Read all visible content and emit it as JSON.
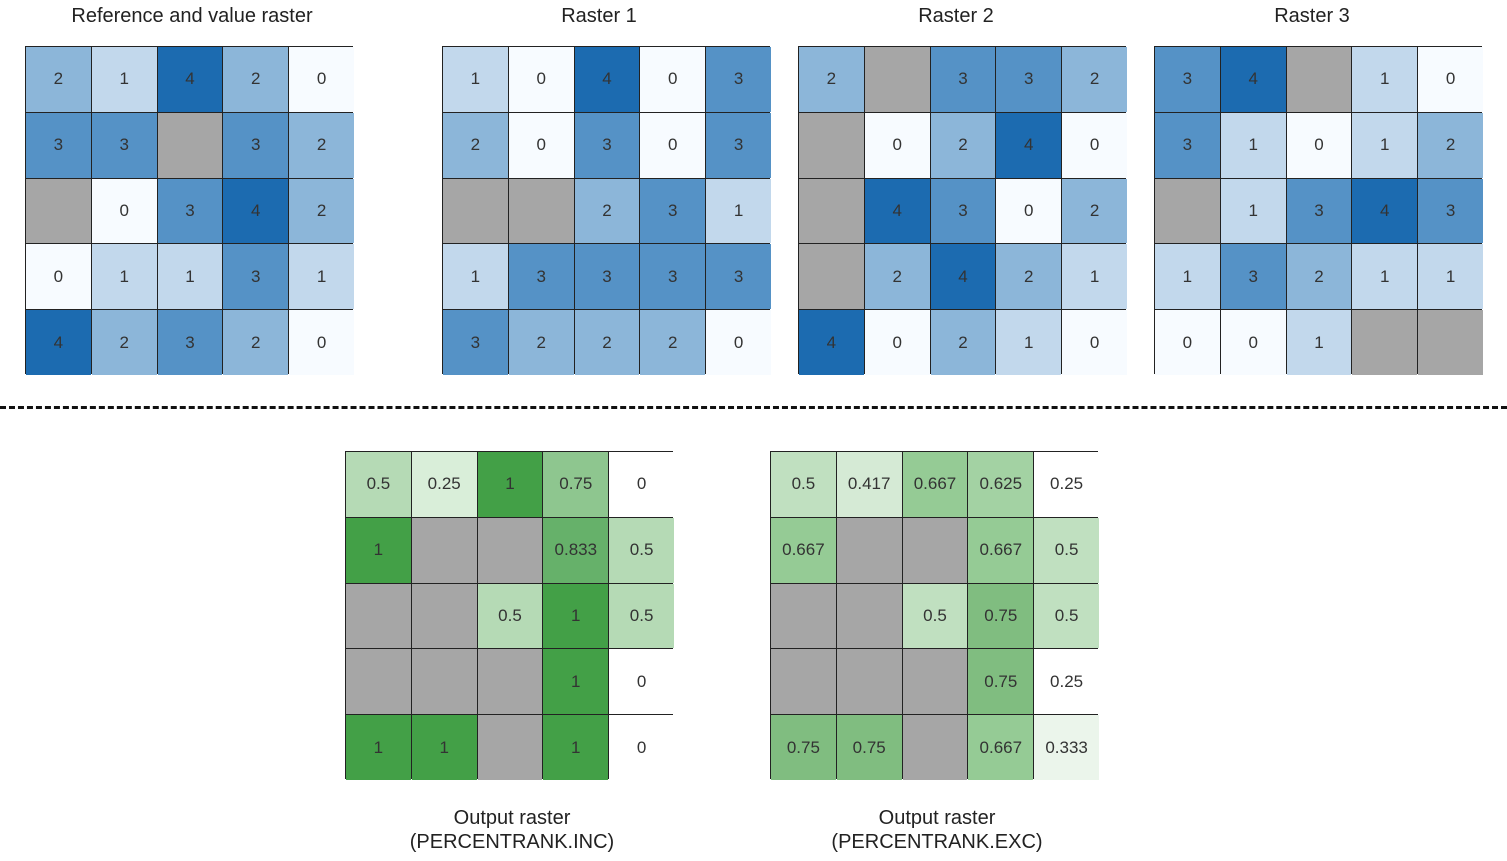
{
  "nodata_color": "#a6a6a6",
  "inputs": [
    {
      "title": "Reference and value raster",
      "cells": [
        [
          2,
          1,
          4,
          2,
          0
        ],
        [
          3,
          3,
          null,
          3,
          2
        ],
        [
          null,
          0,
          3,
          4,
          2
        ],
        [
          0,
          1,
          1,
          3,
          1
        ],
        [
          4,
          2,
          3,
          2,
          0
        ]
      ]
    },
    {
      "title": "Raster 1",
      "cells": [
        [
          1,
          0,
          4,
          0,
          3
        ],
        [
          2,
          0,
          3,
          0,
          3
        ],
        [
          null,
          null,
          2,
          3,
          1
        ],
        [
          1,
          3,
          3,
          3,
          3
        ],
        [
          3,
          2,
          2,
          2,
          0
        ]
      ]
    },
    {
      "title": "Raster 2",
      "cells": [
        [
          2,
          null,
          3,
          3,
          2
        ],
        [
          null,
          0,
          2,
          4,
          0
        ],
        [
          null,
          4,
          3,
          0,
          2
        ],
        [
          null,
          2,
          4,
          2,
          1
        ],
        [
          4,
          0,
          2,
          1,
          0
        ]
      ]
    },
    {
      "title": "Raster 3",
      "cells": [
        [
          3,
          4,
          null,
          1,
          0
        ],
        [
          3,
          1,
          0,
          1,
          2
        ],
        [
          null,
          1,
          3,
          4,
          3
        ],
        [
          1,
          3,
          2,
          1,
          1
        ],
        [
          0,
          0,
          1,
          null,
          null
        ]
      ]
    }
  ],
  "input_colors": {
    "0": "#f7fbff",
    "1": "#c2d8ec",
    "2": "#8cb6d9",
    "3": "#5592c6",
    "4": "#1c6bb0"
  },
  "outputs": [
    {
      "caption_line1": "Output raster",
      "caption_line2": "(PERCENTRANK.INC)",
      "cells": [
        [
          "0.5",
          "0.25",
          "1",
          "0.75",
          "0"
        ],
        [
          "1",
          null,
          null,
          "0.833",
          "0.5"
        ],
        [
          null,
          null,
          "0.5",
          "1",
          "0.5"
        ],
        [
          null,
          null,
          null,
          "1",
          "0"
        ],
        [
          "1",
          "1",
          null,
          "1",
          "0"
        ]
      ],
      "colors": {
        "1": "#43a047",
        "0.833": "#66b16a",
        "0.75": "#8ec68f",
        "0.5": "#b5dab5",
        "0.25": "#d9eed9",
        "0": "#ffffff"
      }
    },
    {
      "caption_line1": "Output raster",
      "caption_line2": "(PERCENTRANK.EXC)",
      "cells": [
        [
          "0.5",
          "0.417",
          "0.667",
          "0.625",
          "0.25"
        ],
        [
          "0.667",
          null,
          null,
          "0.667",
          "0.5"
        ],
        [
          null,
          null,
          "0.5",
          "0.75",
          "0.5"
        ],
        [
          null,
          null,
          null,
          "0.75",
          "0.25"
        ],
        [
          "0.75",
          "0.75",
          null,
          "0.667",
          "0.333"
        ]
      ],
      "colors": {
        "0.75": "#80bd80",
        "0.667": "#95cb95",
        "0.625": "#a3d2a3",
        "0.5": "#c0e0c0",
        "0.417": "#d5ead5",
        "0.333": "#ebf5eb",
        "0.25": "#ffffff"
      }
    }
  ]
}
